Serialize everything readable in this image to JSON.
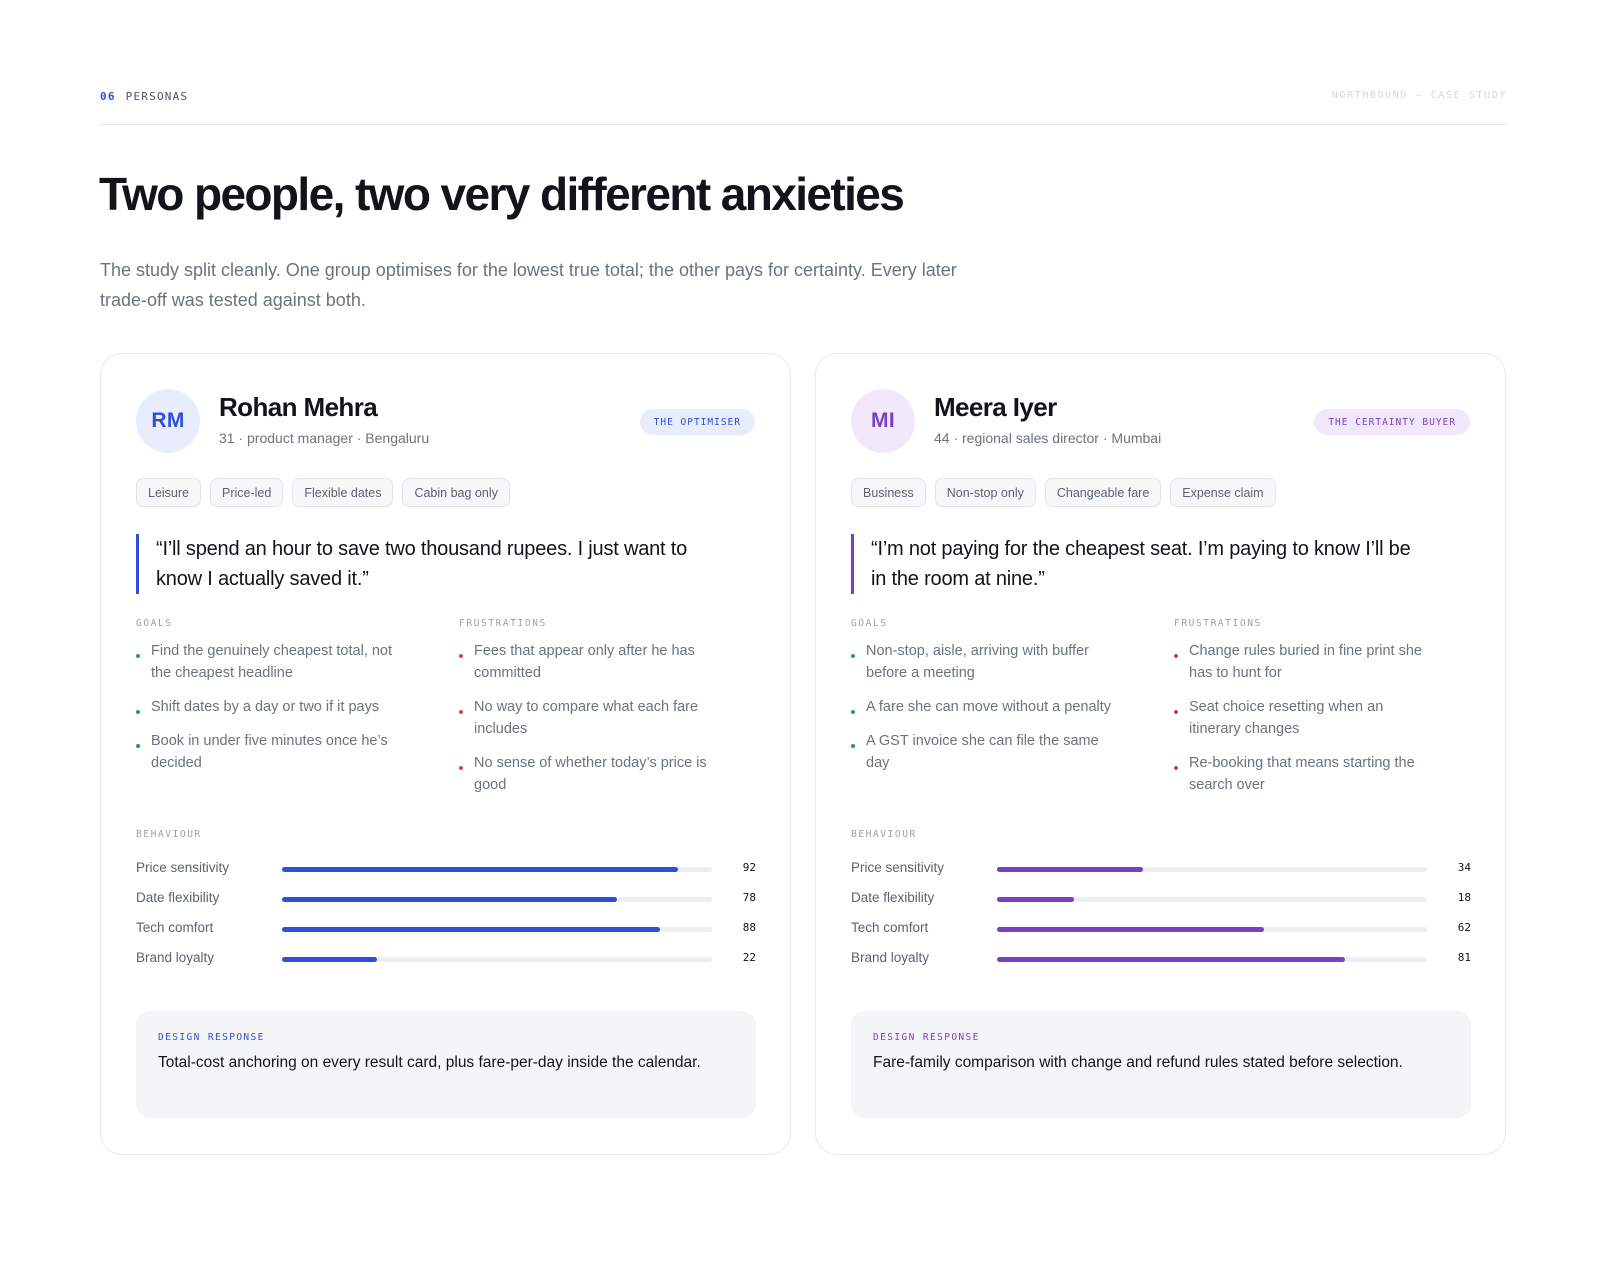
{
  "header": {
    "section_number": "06",
    "section_name": "PERSONAS",
    "case_study": "NORTHBOUND — CASE STUDY"
  },
  "title": "Two people, two very different anxieties",
  "intro": "The study split cleanly. One group optimises for the lowest true total; the other pays for certainty. Every later trade-off was tested against both.",
  "labels": {
    "goals": "GOALS",
    "frustrations": "FRUSTRATIONS",
    "behaviour": "BEHAVIOUR",
    "design_response": "DESIGN RESPONSE"
  },
  "colors": {
    "goal_dot": "#1f9d6b",
    "frustration_dot": "#d64545",
    "optimiser_accent": "#2f4fd6",
    "certainty_accent": "#7b3fbf"
  },
  "personas": [
    {
      "initials": "RM",
      "name": "Rohan Mehra",
      "meta": "31 · product manager · Bengaluru",
      "badge": "THE OPTIMISER",
      "accent": "#2f4fd6",
      "accent_soft": "#e8ecfc",
      "tags": [
        "Leisure",
        "Price-led",
        "Flexible dates",
        "Cabin bag only"
      ],
      "quote": "“I’ll spend an hour to save two thousand rupees. I just want to know I actually saved it.”",
      "goals": [
        "Find the genuinely cheapest total, not the cheapest headline",
        "Shift dates by a day or two if it pays",
        "Book in under five minutes once he’s decided"
      ],
      "frustrations": [
        "Fees that appear only after he has committed",
        "No way to compare what each fare includes",
        "No sense of whether today’s price is good"
      ],
      "behaviour": [
        {
          "label": "Price sensitivity",
          "value": 92
        },
        {
          "label": "Date flexibility",
          "value": 78
        },
        {
          "label": "Tech comfort",
          "value": 88
        },
        {
          "label": "Brand loyalty",
          "value": 22
        }
      ],
      "design_response": "Total-cost anchoring on every result card, plus fare-per-day inside the calendar."
    },
    {
      "initials": "MI",
      "name": "Meera Iyer",
      "meta": "44 · regional sales director · Mumbai",
      "badge": "THE CERTAINTY BUYER",
      "accent": "#7b3fbf",
      "accent_soft": "#f1e8fb",
      "tags": [
        "Business",
        "Non-stop only",
        "Changeable fare",
        "Expense claim"
      ],
      "quote": "“I’m not paying for the cheapest seat. I’m paying to know I’ll be in the room at nine.”",
      "goals": [
        "Non-stop, aisle, arriving with buffer before a meeting",
        "A fare she can move without a penalty",
        "A GST invoice she can file the same day"
      ],
      "frustrations": [
        "Change rules buried in fine print she has to hunt for",
        "Seat choice resetting when an itinerary changes",
        "Re-booking that means starting the search over"
      ],
      "behaviour": [
        {
          "label": "Price sensitivity",
          "value": 34
        },
        {
          "label": "Date flexibility",
          "value": 18
        },
        {
          "label": "Tech comfort",
          "value": 62
        },
        {
          "label": "Brand loyalty",
          "value": 81
        }
      ],
      "design_response": "Fare-family comparison with change and refund rules stated before selection."
    }
  ]
}
